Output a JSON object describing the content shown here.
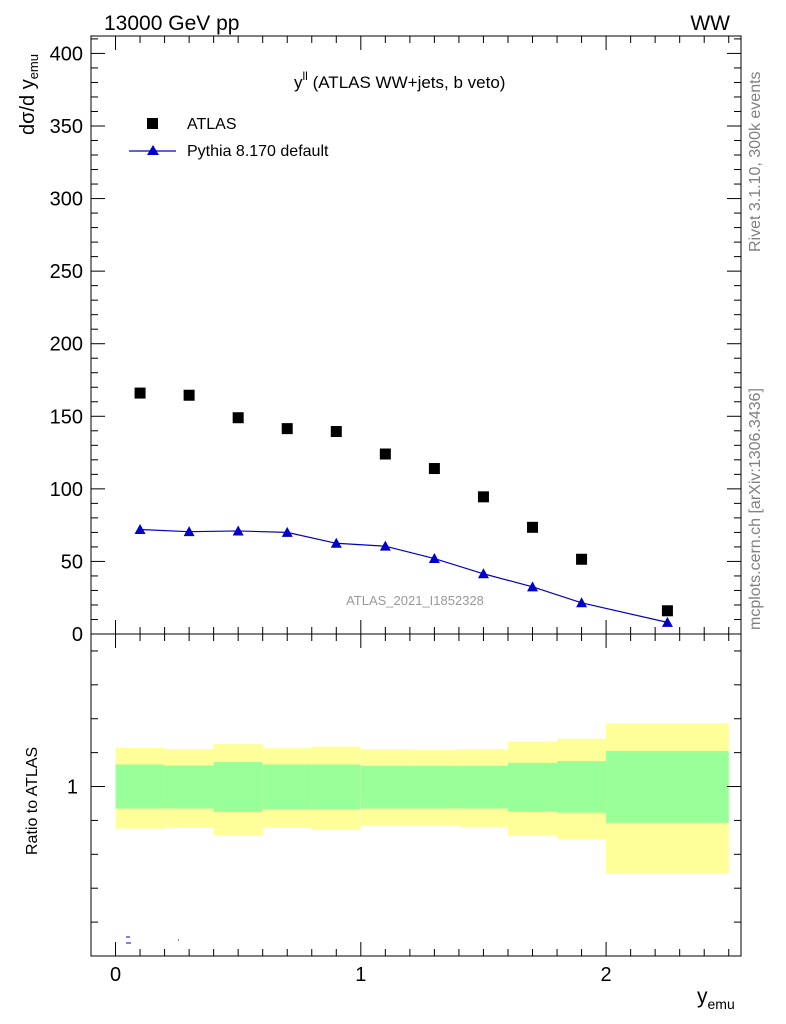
{
  "header": {
    "left": "13000 GeV pp",
    "right": "WW"
  },
  "side_labels": {
    "rivet": "Rivet 3.1.10,  300k events",
    "mcplots": "mcplots.cern.ch [arXiv:1306.3436]"
  },
  "chart_data": [
    {
      "type": "scatter",
      "panel": "main",
      "title": "y",
      "title_sup": "ll",
      "title_rest": " (ATLAS WW+jets, b veto)",
      "ylabel": "dσ/d y",
      "ylabel_sub": "emu",
      "watermark": "ATLAS_2021_I1852328",
      "xlim": [
        -0.1,
        2.55
      ],
      "ylim": [
        0,
        412
      ],
      "yticks": [
        0,
        50,
        100,
        150,
        200,
        250,
        300,
        350,
        400
      ],
      "ytick_labels": [
        "0",
        "50",
        "100",
        "150",
        "200",
        "250",
        "300",
        "350",
        "400"
      ],
      "legend_position": "top-left",
      "series": [
        {
          "name": "ATLAS",
          "marker": "square",
          "color": "#000000",
          "x": [
            0.1,
            0.3,
            0.5,
            0.7,
            0.9,
            1.1,
            1.3,
            1.5,
            1.7,
            1.9,
            2.25
          ],
          "y": [
            166,
            164.5,
            149,
            141.5,
            139.5,
            124,
            114,
            94.5,
            73.5,
            51.5,
            16
          ]
        },
        {
          "name": "Pythia 8.170 default",
          "marker": "triangle",
          "color": "#0000cc",
          "x": [
            0.1,
            0.3,
            0.5,
            0.7,
            0.9,
            1.1,
            1.3,
            1.5,
            1.7,
            1.9,
            2.25
          ],
          "y": [
            72,
            70.5,
            71,
            70,
            62.5,
            60.5,
            52,
            41.5,
            32.5,
            21.5,
            8
          ]
        }
      ]
    },
    {
      "type": "area",
      "panel": "ratio",
      "ylabel": "Ratio to ATLAS",
      "xlabel": "y",
      "xlabel_sub": "emu",
      "xlim": [
        -0.1,
        2.55
      ],
      "ylim": [
        0.5,
        1.45
      ],
      "xticks": [
        0,
        1,
        2
      ],
      "xtick_labels": [
        "0",
        "1",
        "2"
      ],
      "ytick_labels": [
        "1"
      ],
      "bins": [
        {
          "x0": 0.0,
          "x1": 0.2,
          "inner_lo": 0.935,
          "inner_hi": 1.065,
          "outer_lo": 0.876,
          "outer_hi": 1.114
        },
        {
          "x0": 0.2,
          "x1": 0.4,
          "inner_lo": 0.935,
          "inner_hi": 1.062,
          "outer_lo": 0.878,
          "outer_hi": 1.111
        },
        {
          "x0": 0.4,
          "x1": 0.6,
          "inner_lo": 0.925,
          "inner_hi": 1.072,
          "outer_lo": 0.857,
          "outer_hi": 1.125
        },
        {
          "x0": 0.6,
          "x1": 0.8,
          "inner_lo": 0.933,
          "inner_hi": 1.065,
          "outer_lo": 0.878,
          "outer_hi": 1.113
        },
        {
          "x0": 0.8,
          "x1": 0.9995,
          "inner_lo": 0.933,
          "inner_hi": 1.065,
          "outer_lo": 0.872,
          "outer_hi": 1.118
        },
        {
          "x0": 1.0,
          "x1": 1.2,
          "inner_lo": 0.935,
          "inner_hi": 1.061,
          "outer_lo": 0.885,
          "outer_hi": 1.11
        },
        {
          "x0": 1.2,
          "x1": 1.4,
          "inner_lo": 0.935,
          "inner_hi": 1.061,
          "outer_lo": 0.885,
          "outer_hi": 1.109
        },
        {
          "x0": 1.4,
          "x1": 1.6,
          "inner_lo": 0.935,
          "inner_hi": 1.061,
          "outer_lo": 0.881,
          "outer_hi": 1.111
        },
        {
          "x0": 1.6,
          "x1": 1.8,
          "inner_lo": 0.926,
          "inner_hi": 1.07,
          "outer_lo": 0.855,
          "outer_hi": 1.133
        },
        {
          "x0": 1.8,
          "x1": 2.0,
          "inner_lo": 0.923,
          "inner_hi": 1.075,
          "outer_lo": 0.845,
          "outer_hi": 1.141
        },
        {
          "x0": 2.0,
          "x1": 2.5,
          "inner_lo": 0.893,
          "inner_hi": 1.105,
          "outer_lo": 0.745,
          "outer_hi": 1.187
        }
      ],
      "colors": {
        "inner": "#99ff99",
        "outer": "#ffff99"
      }
    }
  ]
}
